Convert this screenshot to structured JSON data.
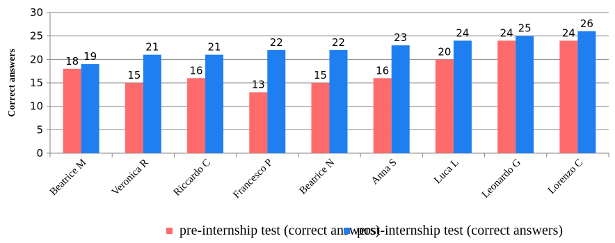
{
  "chart_data": {
    "type": "bar",
    "ylabel": "Correct answers",
    "ylim": [
      0,
      30
    ],
    "yticks": [
      0,
      5,
      10,
      15,
      20,
      25,
      30
    ],
    "grid": true,
    "legend_position": "bottom",
    "categories": [
      "Beatrice M",
      "Veronica R",
      "Riccardo C",
      "Francesco P",
      "Beatrice N",
      "Anna S",
      "Luca L",
      "Leonardo G",
      "Lorenzo C"
    ],
    "series": [
      {
        "name": "pre-internship test (correct answers)",
        "color": "#ff6b6b",
        "values": [
          18,
          15,
          16,
          13,
          15,
          16,
          20,
          24,
          24
        ],
        "labels": [
          "18",
          "15",
          "16",
          "13",
          "15",
          "16",
          "20",
          "24",
          "24"
        ]
      },
      {
        "name": "post-internship test (correct answers)",
        "color": "#1f7ff0",
        "values": [
          19,
          21,
          21,
          22,
          22,
          23,
          24,
          25,
          26
        ],
        "labels": [
          "19",
          "21",
          "21",
          "22",
          "22",
          "23",
          "24",
          "25",
          "26"
        ]
      }
    ]
  }
}
